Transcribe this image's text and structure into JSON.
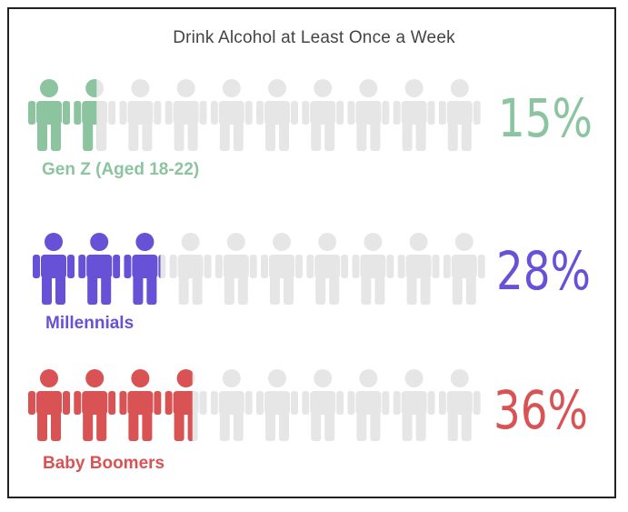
{
  "chart_data": {
    "type": "bar",
    "title": "Drink Alcohol at Least Once a Week",
    "icons_per_row": 10,
    "series": [
      {
        "name": "Gen Z (Aged 18-22)",
        "value": 15,
        "value_label": "15%",
        "color": "#8cc4a0"
      },
      {
        "name": "Millennials",
        "value": 28,
        "value_label": "28%",
        "color": "#6751d6"
      },
      {
        "name": "Baby Boomers",
        "value": 36,
        "value_label": "36%",
        "color": "#d95354"
      }
    ],
    "inactive_color": "#e6e6e6"
  }
}
